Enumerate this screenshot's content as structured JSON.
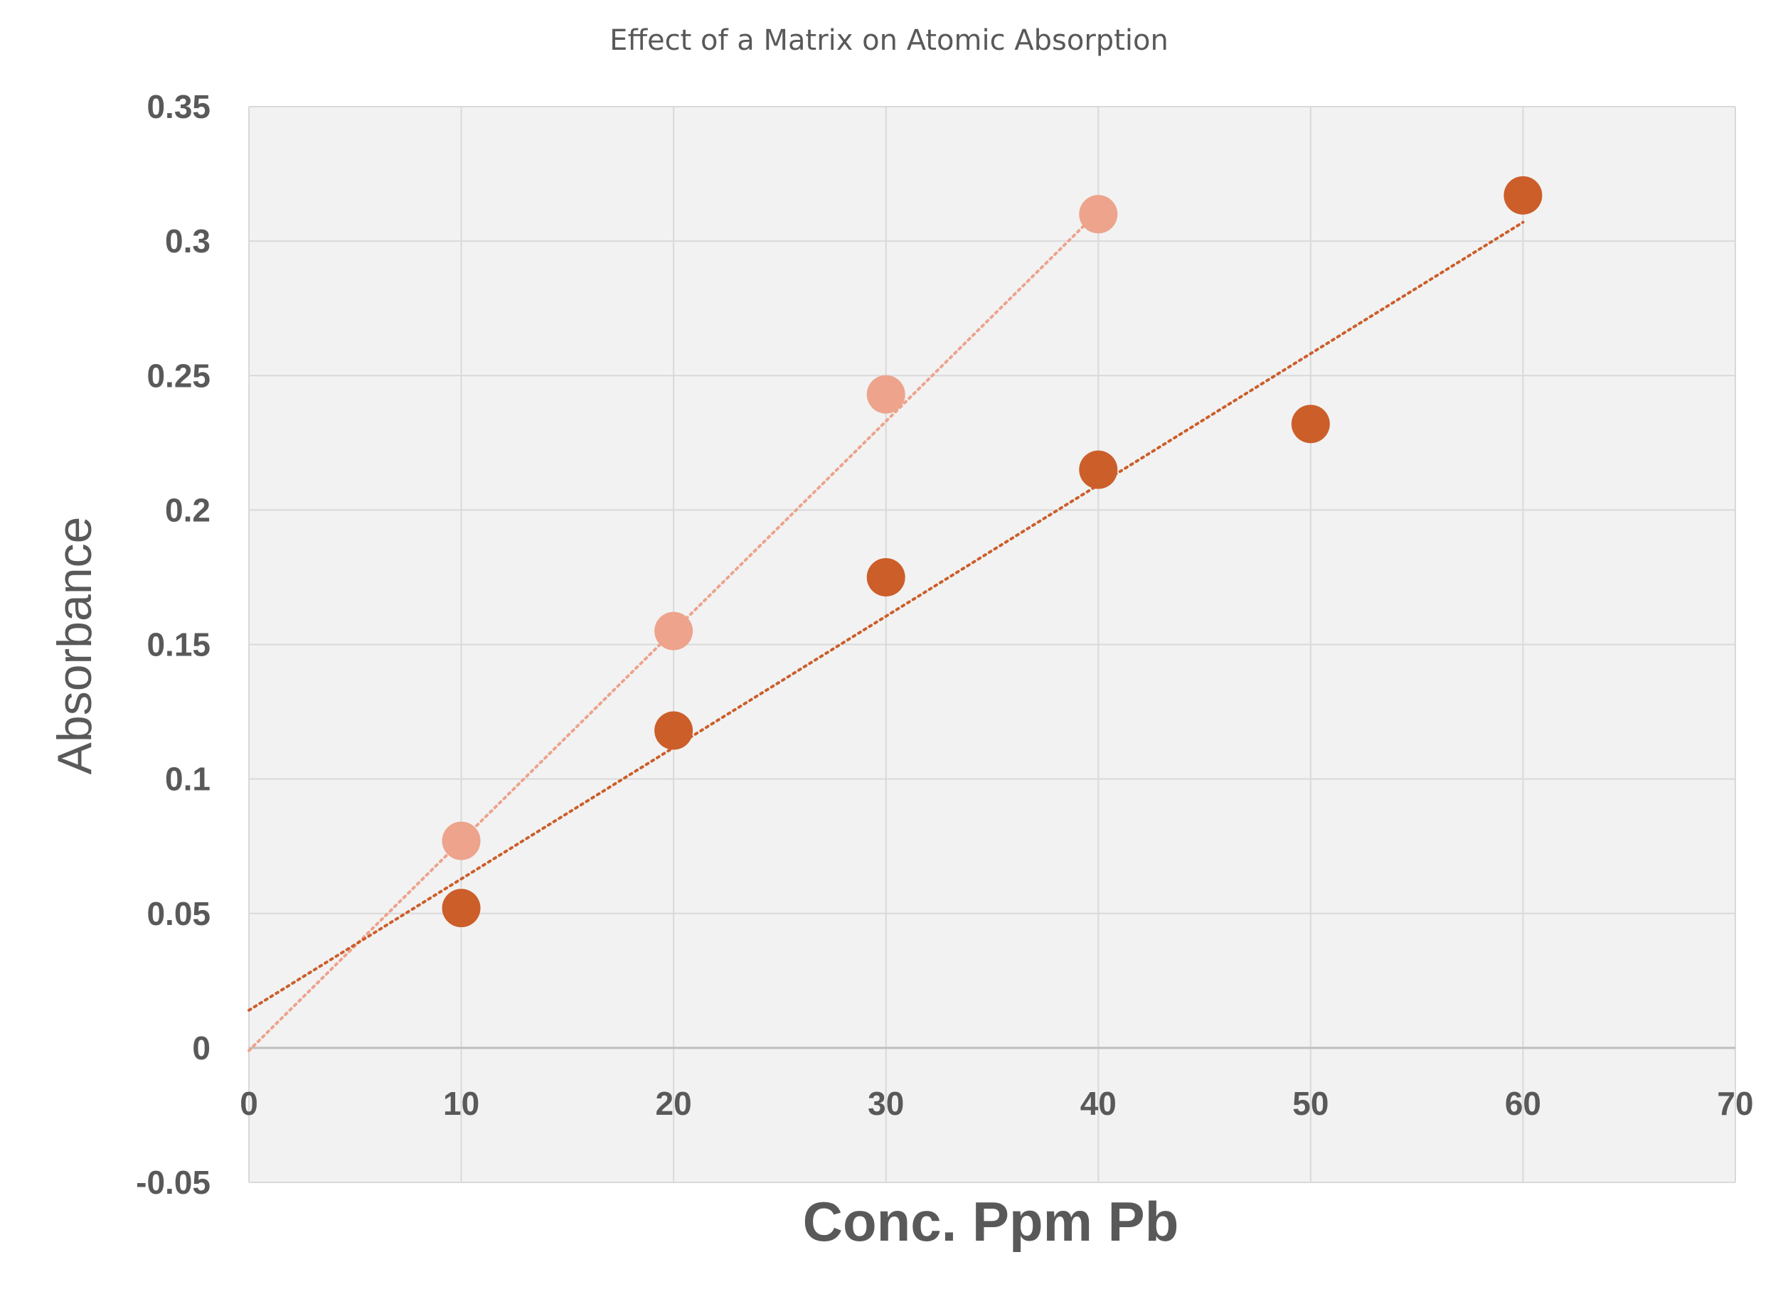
{
  "chart_data": {
    "type": "scatter",
    "title": "Effect of a Matrix on Atomic Absorption",
    "xlabel": "Conc. Ppm Pb",
    "ylabel": "Absorbance",
    "xlim": [
      0,
      70
    ],
    "ylim": [
      -0.05,
      0.35
    ],
    "x_ticks": [
      "0",
      "10",
      "20",
      "30",
      "40",
      "50",
      "60",
      "70"
    ],
    "y_ticks": [
      "-0.05",
      "0",
      "0.05",
      "0.1",
      "0.15",
      "0.2",
      "0.25",
      "0.3",
      "0.35"
    ],
    "grid": true,
    "legend": "none",
    "series": [
      {
        "color": "#eda38c",
        "points": [
          [
            10,
            0.077
          ],
          [
            20,
            0.155
          ],
          [
            30,
            0.243
          ],
          [
            40,
            0.31
          ]
        ],
        "trendline": {
          "type": "linear",
          "style": "dotted",
          "from": [
            0,
            -0.001
          ],
          "to": [
            40,
            0.311
          ]
        }
      },
      {
        "color": "#cc5e2a",
        "points": [
          [
            10,
            0.052
          ],
          [
            20,
            0.118
          ],
          [
            30,
            0.175
          ],
          [
            40,
            0.215
          ],
          [
            50,
            0.232
          ],
          [
            60,
            0.317
          ]
        ],
        "trendline": {
          "type": "linear",
          "style": "dotted",
          "from": [
            0,
            0.014
          ],
          "to": [
            60,
            0.307
          ]
        }
      }
    ],
    "colors": {
      "plot_background": "#f2f2f2",
      "grid": "#d9d9d9",
      "text": "#595959"
    }
  }
}
